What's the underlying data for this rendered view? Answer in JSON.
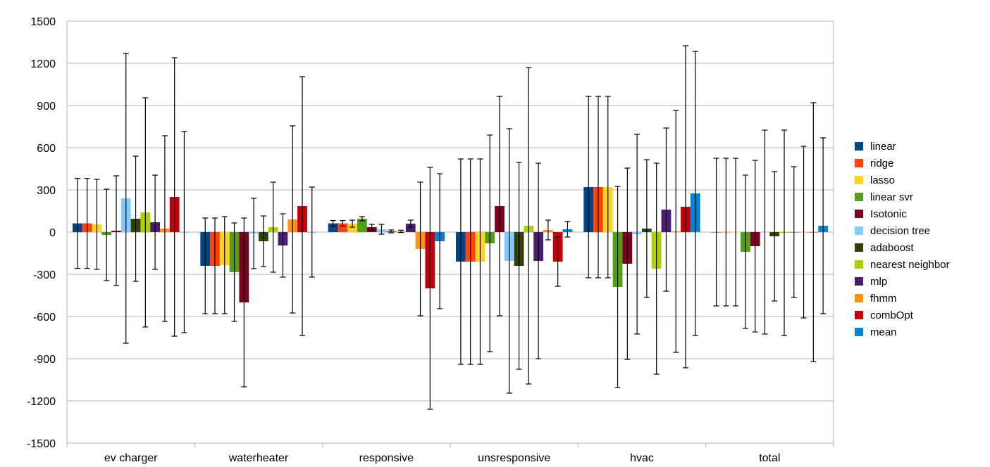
{
  "chart_data": {
    "type": "bar",
    "categories": [
      "ev charger",
      "waterheater",
      "responsive",
      "unsresponsive",
      "hvac",
      "total"
    ],
    "ylim": [
      -1500,
      1500
    ],
    "yticks": [
      -1500,
      -1200,
      -900,
      -600,
      -300,
      0,
      300,
      600,
      900,
      1200,
      1500
    ],
    "grid": true,
    "legend_position": "right",
    "error_bars": true,
    "series": [
      {
        "name": "linear",
        "color": "#004586",
        "values": [
          62,
          -240,
          62,
          -210,
          320,
          0
        ],
        "errors": [
          320,
          340,
          20,
          730,
          645,
          525
        ]
      },
      {
        "name": "ridge",
        "color": "#ff420e",
        "values": [
          62,
          -240,
          62,
          -210,
          320,
          0
        ],
        "errors": [
          320,
          340,
          20,
          730,
          645,
          525
        ]
      },
      {
        "name": "lasso",
        "color": "#ffd320",
        "values": [
          55,
          -235,
          60,
          -210,
          320,
          0
        ],
        "errors": [
          320,
          345,
          25,
          730,
          645,
          525
        ]
      },
      {
        "name": "linear svr",
        "color": "#579d1c",
        "values": [
          -20,
          -285,
          95,
          -80,
          -390,
          -140
        ],
        "errors": [
          325,
          350,
          15,
          770,
          715,
          545
        ]
      },
      {
        "name": "Isotonic",
        "color": "#7e0021",
        "values": [
          10,
          -500,
          35,
          185,
          -225,
          -100
        ],
        "errors": [
          390,
          600,
          20,
          780,
          680,
          610
        ]
      },
      {
        "name": "decision tree",
        "color": "#83caff",
        "values": [
          240,
          -10,
          20,
          -205,
          -15,
          0
        ],
        "errors": [
          1030,
          250,
          35,
          940,
          710,
          725
        ]
      },
      {
        "name": "adaboost",
        "color": "#314004",
        "values": [
          95,
          -65,
          5,
          -240,
          25,
          -30
        ],
        "errors": [
          445,
          180,
          10,
          735,
          490,
          460
        ]
      },
      {
        "name": "nearest neighbor",
        "color": "#aecf00",
        "values": [
          140,
          35,
          5,
          45,
          -260,
          -5
        ],
        "errors": [
          815,
          320,
          8,
          1125,
          750,
          730
        ]
      },
      {
        "name": "mlp",
        "color": "#4b1f6f",
        "values": [
          70,
          -95,
          60,
          -205,
          160,
          0
        ],
        "errors": [
          335,
          225,
          25,
          695,
          580,
          465
        ]
      },
      {
        "name": "fhmm",
        "color": "#ff950e",
        "values": [
          25,
          90,
          -120,
          15,
          5,
          0
        ],
        "errors": [
          660,
          665,
          475,
          70,
          860,
          610
        ]
      },
      {
        "name": "combOpt",
        "color": "#c5000b",
        "values": [
          250,
          185,
          -400,
          -210,
          180,
          0
        ],
        "errors": [
          990,
          920,
          860,
          175,
          1145,
          920
        ]
      },
      {
        "name": "mean",
        "color": "#0084d1",
        "values": [
          0,
          0,
          -65,
          20,
          275,
          45
        ],
        "errors": [
          715,
          320,
          480,
          55,
          1010,
          625
        ]
      }
    ]
  }
}
